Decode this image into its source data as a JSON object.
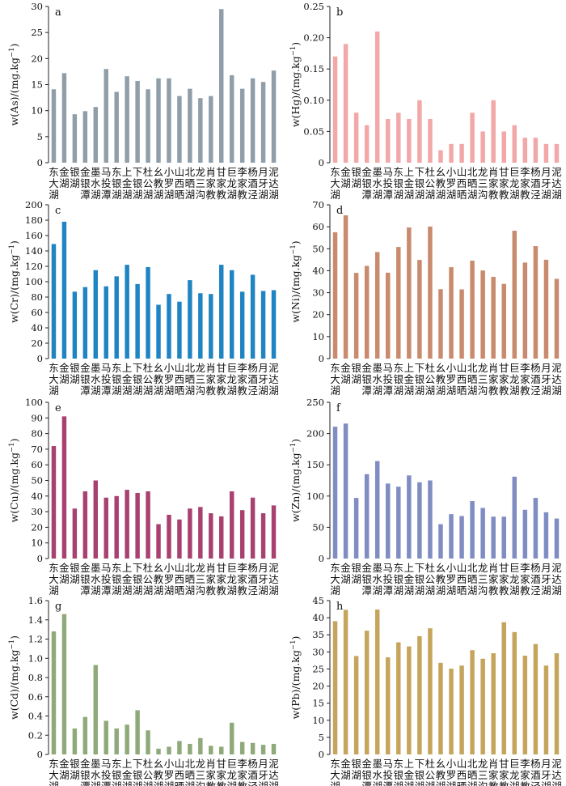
{
  "chart_data": [
    {
      "panel": "a",
      "type": "bar",
      "color": "#8f9ea8",
      "ylabel": "w(As)/(mg.kg",
      "ylabel_sup": "−1",
      "ylabel_end": ")",
      "ylim": [
        0,
        30
      ],
      "yticks": [
        0,
        5,
        10,
        15,
        20,
        25,
        30
      ],
      "categories": [
        "东大湖",
        "金湖",
        "银湖",
        "金银潭",
        "墨水湖",
        "马投潭",
        "东银湖",
        "上金湖",
        "下银湖",
        "杜公湖",
        "幺教湖",
        "小罗湖",
        "山西晒",
        "北晒湖",
        "龙三沟",
        "肖家教",
        "甘家教",
        "巨龙湖",
        "李家教",
        "杨酒泾",
        "月牙湖",
        "泥达湖"
      ],
      "values": [
        14.1,
        17.2,
        9.3,
        9.9,
        10.7,
        18.0,
        13.6,
        16.6,
        15.7,
        14.1,
        16.2,
        16.2,
        12.8,
        14.2,
        12.4,
        12.8,
        29.5,
        16.8,
        14.2,
        16.2,
        15.5,
        17.7
      ]
    },
    {
      "panel": "b",
      "type": "bar",
      "color": "#f2a8a8",
      "ylabel": "w(Hg)/(mg.kg",
      "ylabel_sup": "−1",
      "ylabel_end": ")",
      "ylim": [
        0,
        0.25
      ],
      "yticks": [
        0,
        0.05,
        0.1,
        0.15,
        0.2,
        0.25
      ],
      "ytick_labels": [
        "0",
        "0.05",
        "0.10",
        "0.15",
        "0.20",
        "0.25"
      ],
      "categories": [
        "东大湖",
        "金湖",
        "银湖",
        "金银潭",
        "墨水湖",
        "马投潭",
        "东银湖",
        "上金湖",
        "下银湖",
        "杜公湖",
        "幺教湖",
        "小罗湖",
        "山西晒",
        "北晒湖",
        "龙三沟",
        "肖家教",
        "甘家教",
        "巨龙湖",
        "李家教",
        "杨酒泾",
        "月牙湖",
        "泥达湖"
      ],
      "values": [
        0.17,
        0.19,
        0.08,
        0.06,
        0.21,
        0.07,
        0.08,
        0.07,
        0.1,
        0.07,
        0.02,
        0.03,
        0.03,
        0.08,
        0.05,
        0.1,
        0.05,
        0.06,
        0.04,
        0.04,
        0.03,
        0.03
      ]
    },
    {
      "panel": "c",
      "type": "bar",
      "color": "#1f84c2",
      "ylabel": "w(Cr)/(mg.kg",
      "ylabel_sup": "−1",
      "ylabel_end": ")",
      "ylim": [
        0,
        200
      ],
      "yticks": [
        0,
        20,
        40,
        60,
        80,
        100,
        120,
        140,
        160,
        180,
        200
      ],
      "categories": [
        "东大湖",
        "金湖",
        "银湖",
        "金银潭",
        "墨水湖",
        "马投潭",
        "东银湖",
        "上金湖",
        "下银湖",
        "杜公湖",
        "幺教湖",
        "小罗湖",
        "山西晒",
        "北晒湖",
        "龙三沟",
        "肖家教",
        "甘家教",
        "巨龙湖",
        "李家教",
        "杨酒泾",
        "月牙湖",
        "泥达湖"
      ],
      "values": [
        149,
        178,
        87,
        93,
        115,
        94,
        107,
        122,
        97,
        119,
        70,
        84,
        74,
        102,
        85,
        84,
        122,
        115,
        87,
        109,
        88,
        89
      ]
    },
    {
      "panel": "d",
      "type": "bar",
      "color": "#c98a6e",
      "ylabel": "w(Ni)/(mg.kg",
      "ylabel_sup": "−1",
      "ylabel_end": ")",
      "ylim": [
        0,
        70
      ],
      "yticks": [
        0,
        10,
        20,
        30,
        40,
        50,
        60,
        70
      ],
      "categories": [
        "东大湖",
        "金湖",
        "银湖",
        "金银潭",
        "墨水湖",
        "马投潭",
        "东银湖",
        "上金湖",
        "下银湖",
        "杜公湖",
        "幺教湖",
        "小罗湖",
        "山西晒",
        "北晒湖",
        "龙三沟",
        "肖家教",
        "甘家教",
        "巨龙湖",
        "李家教",
        "杨酒泾",
        "月牙湖",
        "泥达湖"
      ],
      "values": [
        57.5,
        65.2,
        39.0,
        42.2,
        48.5,
        39.1,
        50.8,
        59.7,
        44.9,
        60.1,
        31.6,
        41.6,
        31.5,
        44.6,
        40.1,
        37.2,
        34.0,
        58.2,
        43.7,
        51.2,
        45.0,
        36.3
      ]
    },
    {
      "panel": "e",
      "type": "bar",
      "color": "#a8416f",
      "ylabel": "w(Cu)/(mg.kg",
      "ylabel_sup": "−1",
      "ylabel_end": ")",
      "ylim": [
        0,
        100
      ],
      "yticks": [
        0,
        10,
        20,
        30,
        40,
        50,
        60,
        70,
        80,
        90,
        100
      ],
      "categories": [
        "东大湖",
        "金湖",
        "银湖",
        "金银潭",
        "墨水湖",
        "马投潭",
        "东银湖",
        "上金湖",
        "下银湖",
        "杜公湖",
        "幺教湖",
        "小罗湖",
        "山西晒",
        "北晒湖",
        "龙三沟",
        "肖家教",
        "甘家教",
        "巨龙湖",
        "李家教",
        "杨酒泾",
        "月牙湖",
        "泥达湖"
      ],
      "values": [
        72,
        91,
        32,
        43,
        50,
        39,
        40,
        44,
        42,
        43,
        22,
        28,
        25,
        32,
        33,
        29,
        27,
        43,
        31,
        39,
        29,
        34
      ]
    },
    {
      "panel": "f",
      "type": "bar",
      "color": "#7f8dc2",
      "ylabel": "w(Zn)/(mg.kg",
      "ylabel_sup": "−1",
      "ylabel_end": ")",
      "ylim": [
        0,
        250
      ],
      "yticks": [
        0,
        50,
        100,
        150,
        200,
        250
      ],
      "categories": [
        "东大湖",
        "金湖",
        "银湖",
        "金银潭",
        "墨水湖",
        "马投潭",
        "东银湖",
        "上金湖",
        "下银湖",
        "杜公湖",
        "幺教湖",
        "小罗湖",
        "山西晒",
        "北晒湖",
        "龙三沟",
        "肖家教",
        "甘家教",
        "巨龙湖",
        "李家教",
        "杨酒泾",
        "月牙湖",
        "泥达湖"
      ],
      "values": [
        211,
        216,
        97,
        135,
        156,
        120,
        115,
        133,
        122,
        125,
        55,
        71,
        68,
        92,
        81,
        67,
        67,
        131,
        78,
        97,
        74,
        64
      ]
    },
    {
      "panel": "g",
      "type": "bar",
      "color": "#8faa7a",
      "ylabel": "w(Cd)/(mg.kg",
      "ylabel_sup": "−1",
      "ylabel_end": ")",
      "ylim": [
        0,
        1.6
      ],
      "yticks": [
        0,
        0.2,
        0.4,
        0.6,
        0.8,
        1.0,
        1.2,
        1.4,
        1.6
      ],
      "ytick_labels": [
        "0",
        "0.2",
        "0.4",
        "0.6",
        "0.8",
        "1.0",
        "1.2",
        "1.4",
        "1.6"
      ],
      "categories": [
        "东大湖",
        "金湖",
        "银湖",
        "金银潭",
        "墨水湖",
        "马投潭",
        "东银湖",
        "上金湖",
        "下银湖",
        "杜公湖",
        "幺教湖",
        "小罗湖",
        "山西晒",
        "北晒湖",
        "龙三沟",
        "肖家教",
        "甘家教",
        "巨龙湖",
        "李家教",
        "杨酒泾",
        "月牙湖",
        "泥达湖"
      ],
      "values": [
        1.28,
        1.46,
        0.27,
        0.39,
        0.93,
        0.35,
        0.27,
        0.31,
        0.46,
        0.25,
        0.06,
        0.08,
        0.14,
        0.11,
        0.17,
        0.09,
        0.08,
        0.33,
        0.13,
        0.12,
        0.1,
        0.11
      ]
    },
    {
      "panel": "h",
      "type": "bar",
      "color": "#c5a55c",
      "ylabel": "w(Pb)/(mg.kg",
      "ylabel_sup": "−1",
      "ylabel_end": ")",
      "ylim": [
        0,
        45
      ],
      "yticks": [
        0,
        5,
        10,
        15,
        20,
        25,
        30,
        35,
        40,
        45
      ],
      "categories": [
        "东大湖",
        "金湖",
        "银湖",
        "金银潭",
        "墨水湖",
        "马投潭",
        "东银湖",
        "上金湖",
        "下银湖",
        "杜公湖",
        "幺教湖",
        "小罗湖",
        "山西晒",
        "北晒湖",
        "龙三沟",
        "肖家教",
        "甘家教",
        "巨龙湖",
        "李家教",
        "杨酒泾",
        "月牙湖",
        "泥达湖"
      ],
      "values": [
        39.0,
        42.3,
        28.8,
        36.2,
        42.4,
        28.4,
        32.8,
        31.6,
        34.6,
        36.9,
        26.8,
        25.1,
        26.0,
        30.5,
        28.0,
        29.6,
        38.7,
        35.8,
        28.9,
        32.3,
        26.0,
        29.6
      ]
    }
  ]
}
